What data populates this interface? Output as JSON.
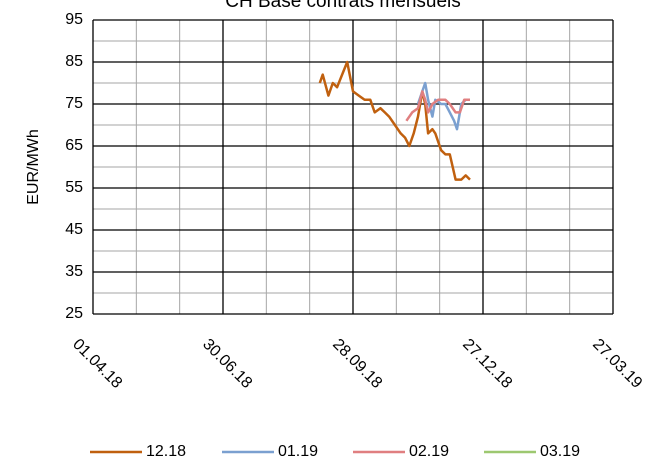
{
  "chart_data": {
    "type": "line",
    "title": "CH Base contrats mensuels",
    "y_label": "EUR/MWh",
    "ylim": [
      25,
      95
    ],
    "yticks": [
      25,
      35,
      45,
      55,
      65,
      75,
      85,
      95
    ],
    "xlim": [
      "2018-04-01",
      "2019-03-27"
    ],
    "xticks": [
      {
        "value": "2018-04-01",
        "label": "01.04.18"
      },
      {
        "value": "2018-06-30",
        "label": "30.06.18"
      },
      {
        "value": "2018-09-28",
        "label": "28.09.18"
      },
      {
        "value": "2018-12-27",
        "label": "27.12.18"
      },
      {
        "value": "2019-03-27",
        "label": "27.03.19"
      }
    ],
    "grid": true,
    "legend": "bottom",
    "series": [
      {
        "name": "12.18",
        "color": "#c0600f",
        "x": [
          "2018-09-05",
          "2018-09-07",
          "2018-09-11",
          "2018-09-14",
          "2018-09-17",
          "2018-09-24",
          "2018-09-28",
          "2018-10-02",
          "2018-10-06",
          "2018-10-10",
          "2018-10-13",
          "2018-10-17",
          "2018-10-20",
          "2018-10-23",
          "2018-10-27",
          "2018-10-31",
          "2018-11-03",
          "2018-11-06",
          "2018-11-09",
          "2018-11-12",
          "2018-11-15",
          "2018-11-17",
          "2018-11-19",
          "2018-11-22",
          "2018-11-24",
          "2018-11-28",
          "2018-12-01",
          "2018-12-04",
          "2018-12-08",
          "2018-12-12",
          "2018-12-15",
          "2018-12-18"
        ],
        "values": [
          80,
          82,
          77,
          80,
          79,
          85,
          78,
          77,
          76,
          76,
          73,
          74,
          73,
          72,
          70,
          68,
          67,
          65,
          68,
          72,
          78,
          75,
          68,
          69,
          68,
          64,
          63,
          63,
          57,
          57,
          58,
          57
        ]
      },
      {
        "name": "01.19",
        "color": "#7ba0d0",
        "x": [
          "2018-11-12",
          "2018-11-15",
          "2018-11-17",
          "2018-11-19",
          "2018-11-22",
          "2018-11-24",
          "2018-11-28",
          "2018-12-01",
          "2018-12-04",
          "2018-12-07",
          "2018-12-09",
          "2018-12-12",
          "2018-12-15",
          "2018-12-18"
        ],
        "values": [
          75,
          78,
          80,
          76,
          72,
          76,
          75,
          75,
          73,
          71,
          69,
          75,
          76,
          76
        ]
      },
      {
        "name": "02.19",
        "color": "#e07f80",
        "x": [
          "2018-11-04",
          "2018-11-08",
          "2018-11-12",
          "2018-11-15",
          "2018-11-17",
          "2018-11-19",
          "2018-11-22",
          "2018-11-26",
          "2018-12-01",
          "2018-12-04",
          "2018-12-08",
          "2018-12-11",
          "2018-12-14",
          "2018-12-18"
        ],
        "values": [
          71,
          73,
          74,
          78,
          76,
          73,
          75,
          76,
          76,
          75,
          73,
          73,
          76,
          76
        ]
      },
      {
        "name": "03.19",
        "color": "#9dc870",
        "x": [],
        "values": []
      }
    ]
  }
}
